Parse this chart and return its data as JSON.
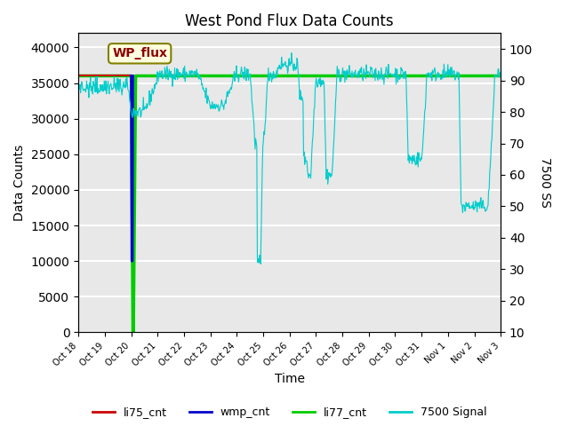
{
  "title": "West Pond Flux Data Counts",
  "xlabel": "Time",
  "ylabel_left": "Data Counts",
  "ylabel_right": "7500 SS",
  "annotation_text": "WP_flux",
  "ylim_left": [
    0,
    42000
  ],
  "ylim_right": [
    10,
    105
  ],
  "yticks_left": [
    0,
    5000,
    10000,
    15000,
    20000,
    25000,
    30000,
    35000,
    40000
  ],
  "yticks_right": [
    10,
    20,
    30,
    40,
    50,
    60,
    70,
    80,
    90,
    100
  ],
  "bg_color": "#e8e8e8",
  "legend_labels": [
    "li75_cnt",
    "wmp_cnt",
    "li77_cnt",
    "7500 Signal"
  ],
  "legend_colors": [
    "#cc0000",
    "#0000cc",
    "#00cc00",
    "#00cccc"
  ],
  "line_colors": {
    "li75_cnt": "#cc0000",
    "wmp_cnt": "#0000cc",
    "li77_cnt": "#00cc00",
    "7500_signal": "#00cccc"
  }
}
